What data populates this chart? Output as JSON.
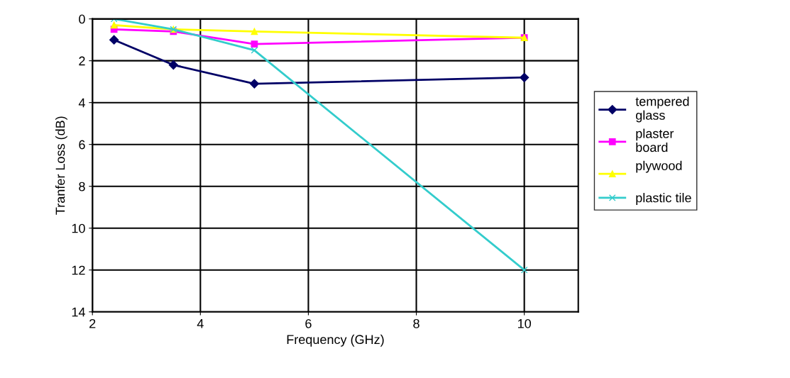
{
  "chart_data": {
    "type": "line",
    "xlabel": "Frequency (GHz)",
    "ylabel": "Tranfer Loss (dB)",
    "x": [
      2.4,
      3.5,
      5,
      10
    ],
    "series": [
      {
        "name": "tempered\nglass",
        "color": "#000066",
        "marker": "diamond",
        "values": [
          1.0,
          2.2,
          3.1,
          2.8
        ]
      },
      {
        "name": "plaster\nboard",
        "color": "#ff00ff",
        "marker": "square",
        "values": [
          0.5,
          0.6,
          1.2,
          0.9
        ]
      },
      {
        "name": "plywood\n",
        "color": "#ffff00",
        "marker": "triangle",
        "values": [
          0.3,
          0.5,
          0.6,
          0.9
        ]
      },
      {
        "name": "plastic tile",
        "color": "#33cccc",
        "marker": "cross",
        "values": [
          0.0,
          0.5,
          1.5,
          12.0
        ]
      }
    ],
    "xlim": [
      2,
      11
    ],
    "xticks": [
      2,
      4,
      6,
      8,
      10
    ],
    "ylim": [
      14,
      0
    ],
    "yticks": [
      0,
      2,
      4,
      6,
      8,
      10,
      12,
      14
    ],
    "grid": true,
    "legend": "right",
    "line_style": "solid"
  }
}
